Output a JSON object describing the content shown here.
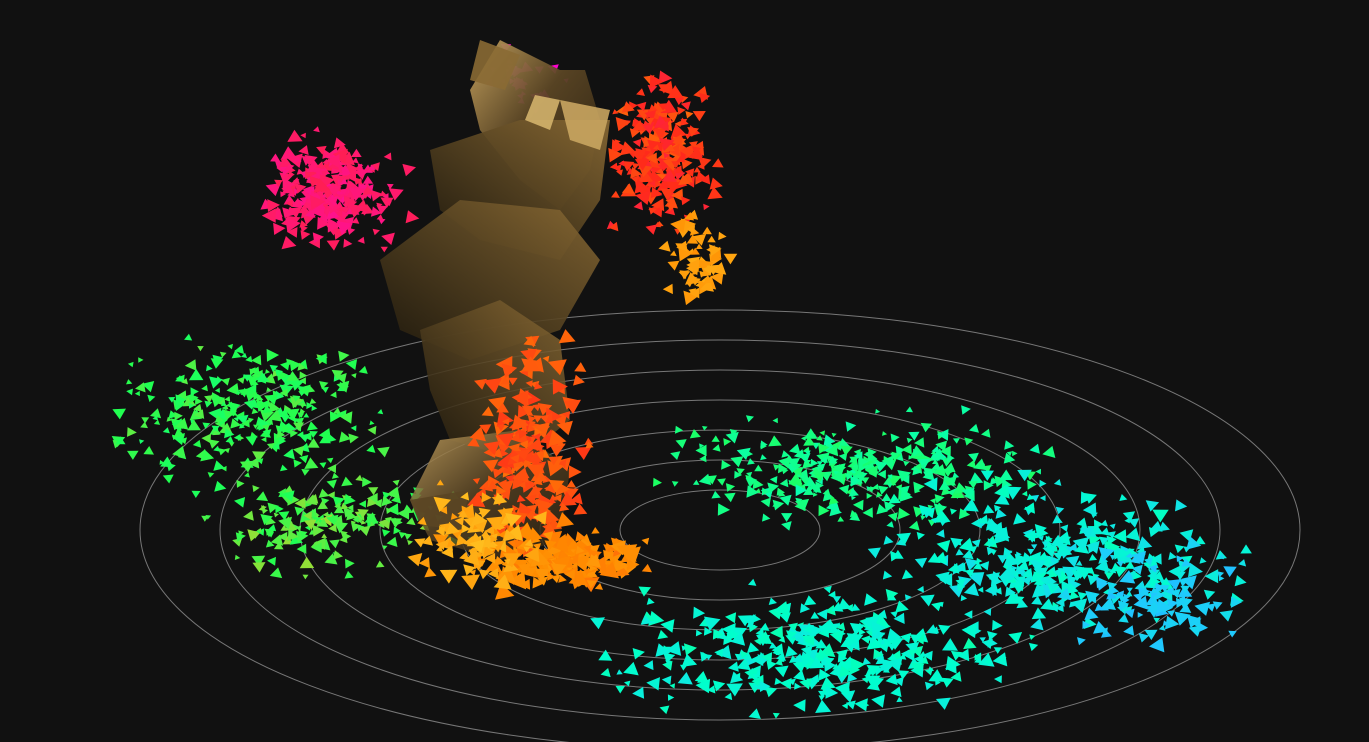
{
  "scene": {
    "background_color": "#111111",
    "view": "3d-point-cloud-visualization",
    "ground": {
      "shape": "concentric-rings",
      "ring_count": 7,
      "ring_color": "#9a9a9a"
    },
    "point_cloud": {
      "glyph": "triangle",
      "colormap": "height-gradient",
      "palette": [
        "#ff00d4",
        "#ff1a6a",
        "#ff2a1a",
        "#ff8a00",
        "#ffc020",
        "#20ff50",
        "#00ffcc",
        "#20c8ff",
        "#1a7aff"
      ]
    },
    "central_structure": {
      "material": "bronze-surface",
      "colors": [
        "#2a2010",
        "#5a4524",
        "#8a6a34",
        "#c9a560"
      ]
    }
  }
}
